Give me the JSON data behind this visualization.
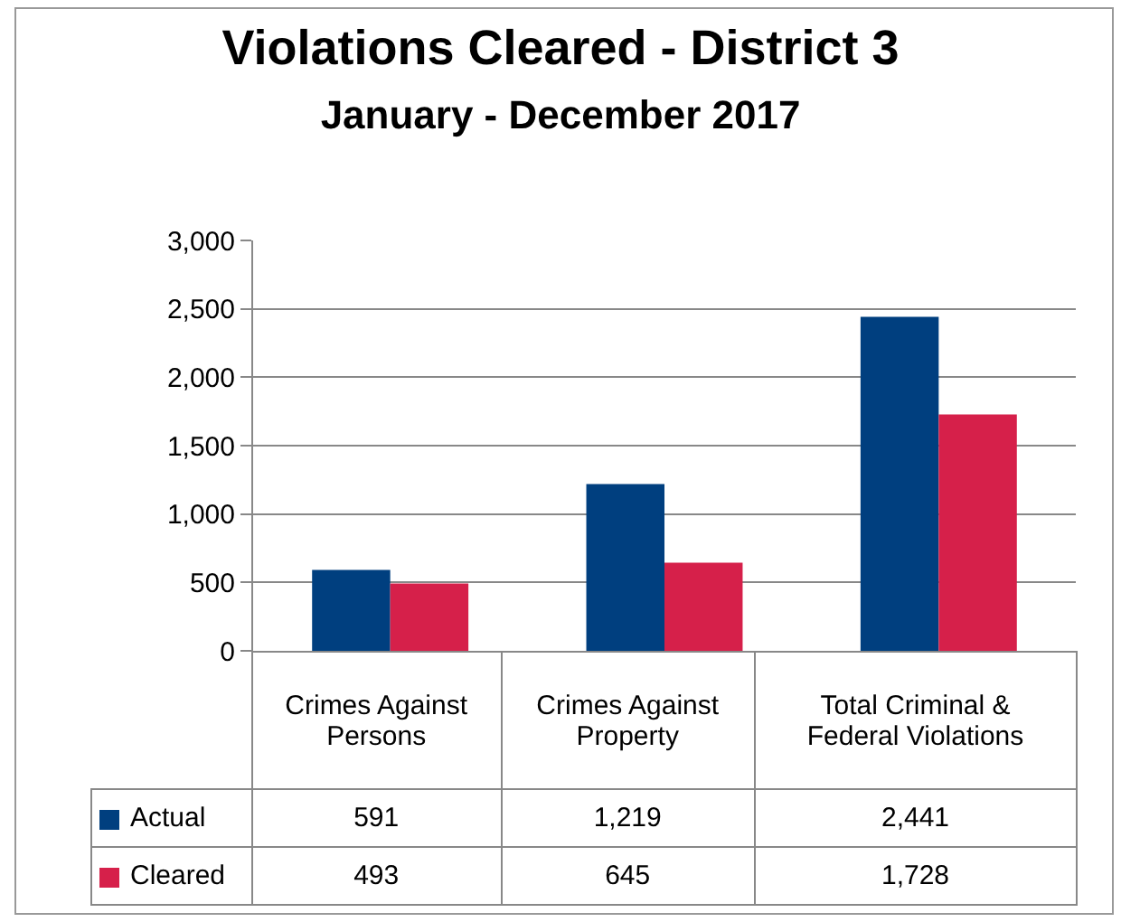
{
  "chart_data": {
    "type": "bar",
    "title": "Violations Cleared - District 3",
    "subtitle": "January - December 2017",
    "categories": [
      "Crimes Against Persons",
      "Crimes Against Property",
      "Total Criminal & Federal Violations"
    ],
    "series": [
      {
        "name": "Actual",
        "color": "#003f7f",
        "values": [
          591,
          1219,
          2441
        ],
        "value_labels": [
          "591",
          "1,219",
          "2,441"
        ]
      },
      {
        "name": "Cleared",
        "color": "#d6204a",
        "values": [
          493,
          645,
          1728
        ],
        "value_labels": [
          "493",
          "645",
          "1,728"
        ]
      }
    ],
    "ylim": [
      0,
      3000
    ],
    "yticks": [
      0,
      {
        "value": 500,
        "label": "500"
      },
      {
        "value": 1000,
        "label": "1,000"
      },
      {
        "value": 1500,
        "label": "1,500"
      },
      {
        "value": 2000,
        "label": "2,000"
      },
      {
        "value": 2500,
        "label": "2,500"
      },
      {
        "value": 3000,
        "label": "3,000"
      }
    ],
    "grid": "y",
    "legend": "bottom"
  }
}
